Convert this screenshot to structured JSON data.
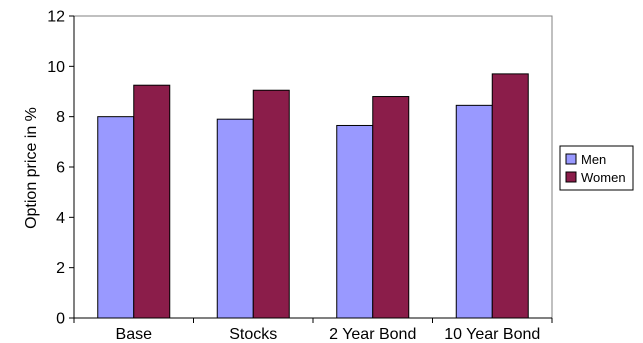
{
  "chart_data": {
    "type": "bar",
    "categories": [
      "Base",
      "Stocks",
      "2 Year Bond",
      "10 Year Bond"
    ],
    "series": [
      {
        "name": "Men",
        "values": [
          8.0,
          7.9,
          7.65,
          8.45
        ],
        "color": "#9999ff"
      },
      {
        "name": "Women",
        "values": [
          9.25,
          9.05,
          8.8,
          9.7
        ],
        "color": "#8b1d4a"
      }
    ],
    "ylabel": "Option price in %",
    "xlabel": "",
    "title": "",
    "ylim": [
      0,
      12
    ],
    "yticks": [
      0,
      2,
      4,
      6,
      8,
      10,
      12
    ],
    "grid": false,
    "legend_position": "right"
  }
}
